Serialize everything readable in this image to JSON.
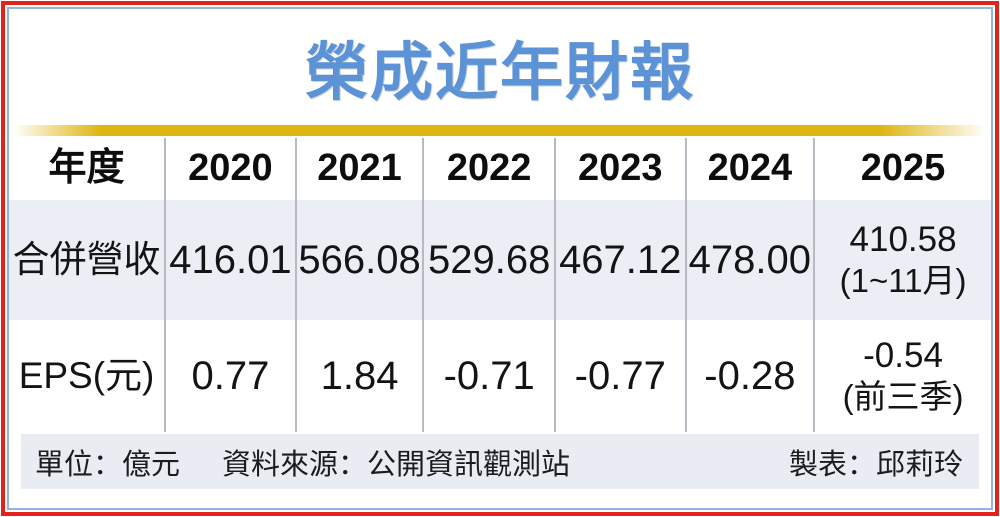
{
  "title": "榮成近年財報",
  "colors": {
    "title_blue": "#5b93d6",
    "border_red": "#e3231a",
    "border_blue": "#8db4e2",
    "gold_bar": "#dfb50f",
    "revenue_row_bg": "#ebeff5",
    "footer_bg": "#e9ecf3"
  },
  "table": {
    "header": [
      "年度",
      "2020",
      "2021",
      "2022",
      "2023",
      "2024",
      "2025"
    ],
    "rows": [
      {
        "label": "合併營收",
        "values": [
          "416.01",
          "566.08",
          "529.68",
          "467.12",
          "478.00"
        ],
        "value_2025": "410.58",
        "note_2025": "(1~11月)"
      },
      {
        "label": "EPS(元)",
        "values": [
          "0.77",
          "1.84",
          "-0.71",
          "-0.77",
          "-0.28"
        ],
        "value_2025": "-0.54",
        "note_2025": "(前三季)"
      }
    ]
  },
  "footer": {
    "unit": "單位：億元",
    "source": "資料來源：公開資訊觀測站",
    "credit": "製表：邱莉玲"
  },
  "chart_data": {
    "type": "table",
    "title": "榮成近年財報",
    "categories": [
      "2020",
      "2021",
      "2022",
      "2023",
      "2024",
      "2025"
    ],
    "series": [
      {
        "name": "合併營收",
        "values": [
          416.01,
          566.08,
          529.68,
          467.12,
          478.0,
          410.58
        ],
        "notes": [
          "",
          "",
          "",
          "",
          "",
          "1~11月"
        ]
      },
      {
        "name": "EPS(元)",
        "values": [
          0.77,
          1.84,
          -0.71,
          -0.77,
          -0.28,
          -0.54
        ],
        "notes": [
          "",
          "",
          "",
          "",
          "",
          "前三季"
        ]
      }
    ],
    "unit": "億元",
    "source": "公開資訊觀測站",
    "credit": "邱莉玲"
  }
}
